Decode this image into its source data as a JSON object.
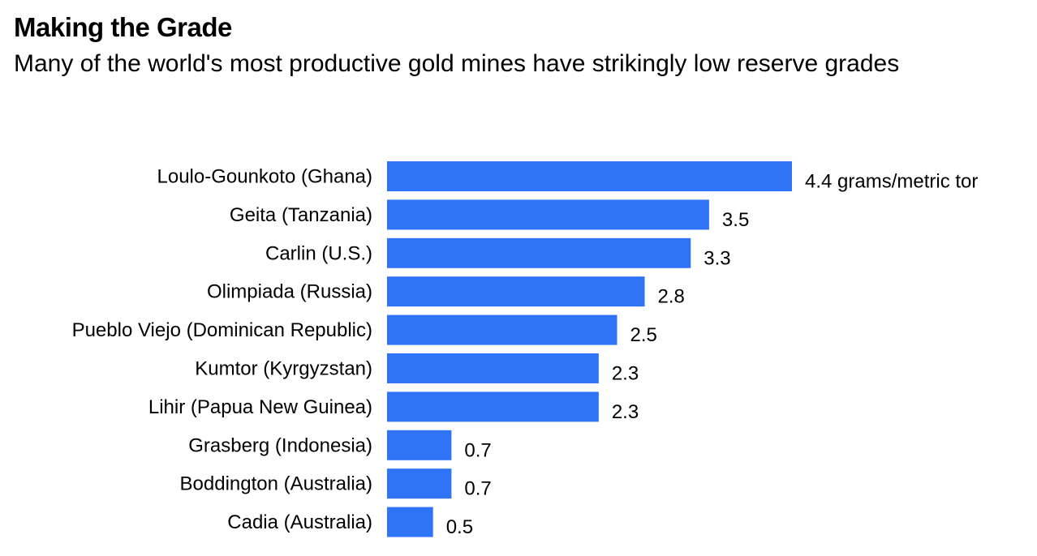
{
  "chart_data": {
    "type": "bar",
    "orientation": "horizontal",
    "title": "Making the Grade",
    "subtitle": "Many of the world's most productive gold mines have strikingly low reserve grades",
    "xlabel": "",
    "ylabel": "",
    "unit_label": "grams/metric tor",
    "categories": [
      "Loulo-Gounkoto (Ghana)",
      "Geita (Tanzania)",
      "Carlin (U.S.)",
      "Olimpiada (Russia)",
      "Pueblo Viejo (Dominican Republic)",
      "Kumtor (Kyrgyzstan)",
      "Lihir (Papua New Guinea)",
      "Grasberg (Indonesia)",
      "Boddington (Australia)",
      "Cadia (Australia)"
    ],
    "values": [
      4.4,
      3.5,
      3.3,
      2.8,
      2.5,
      2.3,
      2.3,
      0.7,
      0.7,
      0.5
    ],
    "value_labels": [
      "4.4 grams/metric tor",
      "3.5",
      "3.3",
      "2.8",
      "2.5",
      "2.3",
      "2.3",
      "0.7",
      "0.7",
      "0.5"
    ],
    "xlim": [
      0,
      4.4
    ],
    "grid": false,
    "legend": "none",
    "bar_color": "#2f73f6"
  }
}
